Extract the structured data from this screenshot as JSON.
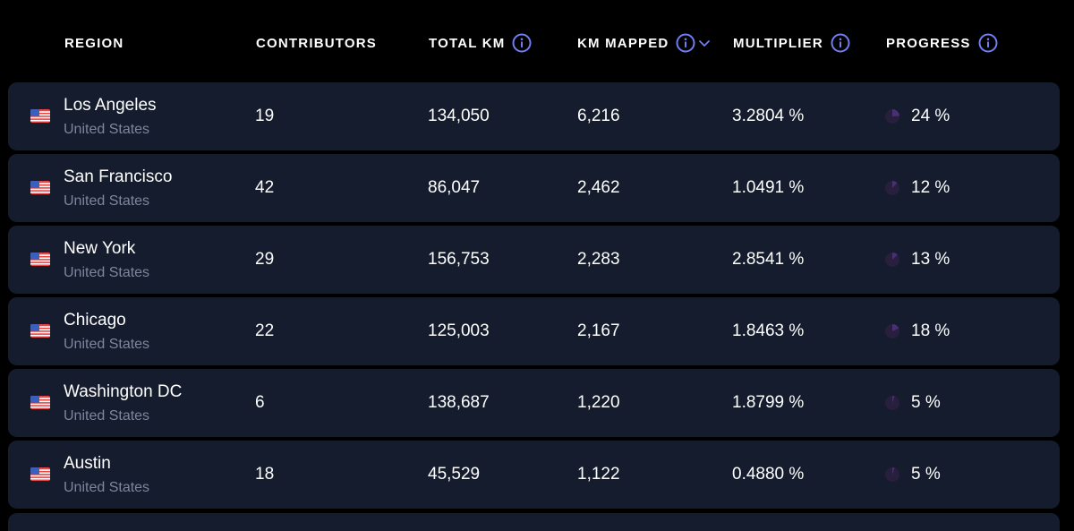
{
  "columns": {
    "region": "REGION",
    "contributors": "CONTRIBUTORS",
    "total_km": "TOTAL KM",
    "km_mapped": "KM MAPPED",
    "multiplier": "MULTIPLIER",
    "progress": "PROGRESS"
  },
  "icons": {
    "info": "info-icon",
    "sort": "chevron-down-icon",
    "flag": "us-flag-icon",
    "progress": "progress-pie-icon"
  },
  "colors": {
    "background": "#000000",
    "row_background": "#141c2e",
    "accent": "#6f7ef0",
    "muted_text": "#7d869c",
    "progress_track": "#281e3e",
    "progress_fill": "#6a3aa8"
  },
  "rows": [
    {
      "city": "Los Angeles",
      "country": "United States",
      "contributors": "19",
      "total_km": "134,050",
      "km_mapped": "6,216",
      "multiplier": "3.2804 %",
      "progress": "24 %",
      "progress_value": 0.24
    },
    {
      "city": "San Francisco",
      "country": "United States",
      "contributors": "42",
      "total_km": "86,047",
      "km_mapped": "2,462",
      "multiplier": "1.0491 %",
      "progress": "12 %",
      "progress_value": 0.12
    },
    {
      "city": "New York",
      "country": "United States",
      "contributors": "29",
      "total_km": "156,753",
      "km_mapped": "2,283",
      "multiplier": "2.8541 %",
      "progress": "13 %",
      "progress_value": 0.13
    },
    {
      "city": "Chicago",
      "country": "United States",
      "contributors": "22",
      "total_km": "125,003",
      "km_mapped": "2,167",
      "multiplier": "1.8463 %",
      "progress": "18 %",
      "progress_value": 0.18
    },
    {
      "city": "Washington DC",
      "country": "United States",
      "contributors": "6",
      "total_km": "138,687",
      "km_mapped": "1,220",
      "multiplier": "1.8799 %",
      "progress": "5 %",
      "progress_value": 0.05
    },
    {
      "city": "Austin",
      "country": "United States",
      "contributors": "18",
      "total_km": "45,529",
      "km_mapped": "1,122",
      "multiplier": "0.4880 %",
      "progress": "5 %",
      "progress_value": 0.05
    }
  ]
}
